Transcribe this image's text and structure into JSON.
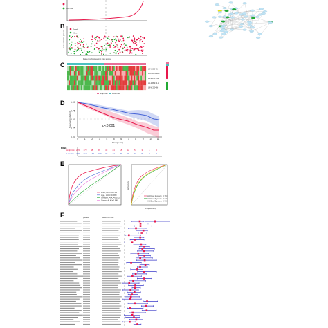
{
  "panels": {
    "B": "B",
    "C": "C",
    "D": "D",
    "E": "E",
    "F": "F"
  },
  "panelA": {
    "legend_low": "Low risk"
  },
  "panelB": {
    "legend": [
      "Dead",
      "Alive"
    ],
    "xlabel": "Patients (increasing risk score)",
    "ylabel": "Survival time (years)"
  },
  "panelC": {
    "legend": [
      "High risk",
      "Low risk"
    ],
    "genes": [
      "LINC00461",
      "AC105460.1",
      "AL355574.1",
      "AL158211.1",
      "LINC00460"
    ]
  },
  "panelD": {
    "pvalue": "p<0.001",
    "ylabel": "Survival probability",
    "xlabel": "Time(years)",
    "yticks": [
      "1.00",
      "0.75",
      "0.50",
      "0.25",
      "0.00"
    ],
    "xticks": [
      "0",
      "1",
      "2",
      "3",
      "4",
      "5",
      "6",
      "7",
      "8",
      "9",
      "10",
      "11"
    ],
    "risk_table": {
      "rows": [
        "High risk",
        "Low risk"
      ],
      "high": [
        "285",
        "172",
        "98",
        "66",
        "43",
        "24",
        "18",
        "12",
        "5",
        "3",
        "1",
        "0"
      ],
      "low": [
        "285",
        "213",
        "142",
        "100",
        "77",
        "44",
        "29",
        "18",
        "9",
        "5",
        "2",
        "1"
      ]
    }
  },
  "panelE": {
    "left_legend": [
      "Risk, AUC=0.769",
      "Age, AUC=0.680",
      "Gender, AUC=0.532",
      "Stage, AUC=0.640"
    ],
    "right_legend": [
      "AUC at 1 years: 0.769",
      "AUC at 3 years: 0.745",
      "AUC at 5 years: 0.764"
    ],
    "right_xlabel": "1-Specificity",
    "right_ylabel": "Sensitivity"
  },
  "panelF": {
    "headers": [
      "",
      "pvalue",
      "Hazard ratio"
    ]
  },
  "colors": {
    "high_risk": "#e8174b",
    "low_risk": "#4563d6",
    "network_node": "#bfe3f5",
    "network_edge": "#aaaaaa",
    "network_green": "#22aa33",
    "network_yellow": "#f2e600",
    "forest_line": "#3a3ac8",
    "forest_point": "#e8174b"
  }
}
